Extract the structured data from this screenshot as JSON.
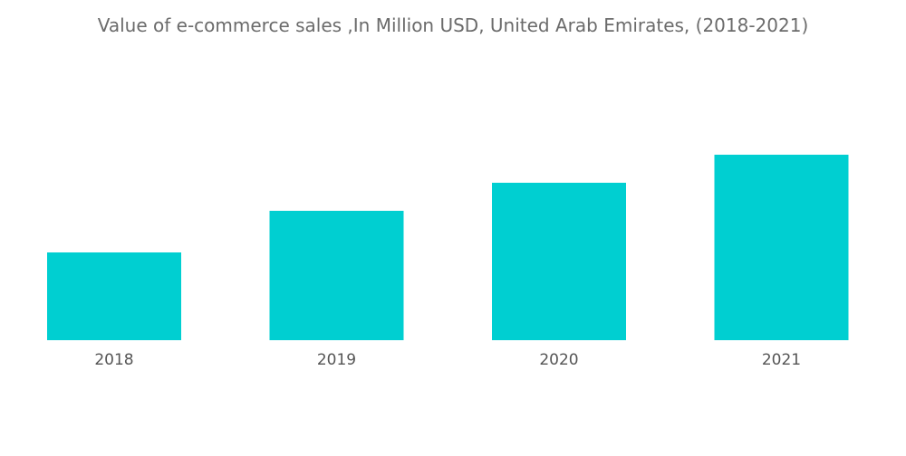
{
  "chart_data": {
    "type": "bar",
    "title": "Value of e-commerce sales ,In Million USD, United Arab Emirates, (2018-2021)",
    "categories": [
      "2018",
      "2019",
      "2020",
      "2021"
    ],
    "values": [
      97,
      143,
      174,
      205
    ],
    "xlabel": "",
    "ylabel": "",
    "ylim": [
      0,
      250
    ],
    "grid": false,
    "legend": "none",
    "bar_color": "#00cfd1"
  }
}
